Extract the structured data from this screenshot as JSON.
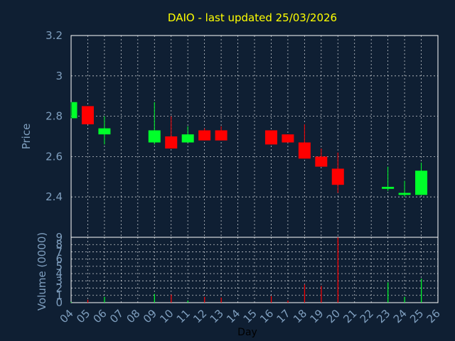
{
  "chart_data": {
    "type": "candlestick",
    "title": "DAIO - last updated 25/03/2026",
    "xlabel": "Day",
    "price_ylabel": "Price",
    "volume_ylabel": "Volume (0000)",
    "price_yticks": [
      "2.4",
      "2.6",
      "2.8",
      "3",
      "3.2"
    ],
    "price_ylim": [
      2.2,
      3.2
    ],
    "volume_yticks": [
      "0",
      "1",
      "2",
      "3",
      "4",
      "5",
      "6",
      "7",
      "8",
      "9"
    ],
    "volume_ylim": [
      0,
      9
    ],
    "x_tick_labels": [
      "04",
      "05",
      "06",
      "07",
      "08",
      "09",
      "10",
      "11",
      "12",
      "13",
      "14",
      "15",
      "16",
      "17",
      "18",
      "19",
      "20",
      "21",
      "22",
      "23",
      "24",
      "25",
      "26"
    ],
    "candles": [
      {
        "day": "04",
        "open": 2.79,
        "close": 2.87,
        "high": 2.87,
        "low": 2.79
      },
      {
        "day": "05",
        "open": 2.85,
        "close": 2.76,
        "high": 2.85,
        "low": 2.76
      },
      {
        "day": "06",
        "open": 2.71,
        "close": 2.74,
        "high": 2.8,
        "low": 2.66
      },
      {
        "day": "09",
        "open": 2.67,
        "close": 2.73,
        "high": 2.87,
        "low": 2.66
      },
      {
        "day": "10",
        "open": 2.7,
        "close": 2.64,
        "high": 2.8,
        "low": 2.64
      },
      {
        "day": "11",
        "open": 2.67,
        "close": 2.71,
        "high": 2.75,
        "low": 2.67
      },
      {
        "day": "12",
        "open": 2.73,
        "close": 2.68,
        "high": 2.74,
        "low": 2.68
      },
      {
        "day": "13",
        "open": 2.73,
        "close": 2.68,
        "high": 2.75,
        "low": 2.68
      },
      {
        "day": "16",
        "open": 2.73,
        "close": 2.66,
        "high": 2.73,
        "low": 2.66
      },
      {
        "day": "17",
        "open": 2.71,
        "close": 2.67,
        "high": 2.71,
        "low": 2.67
      },
      {
        "day": "18",
        "open": 2.67,
        "close": 2.59,
        "high": 2.76,
        "low": 2.59
      },
      {
        "day": "19",
        "open": 2.6,
        "close": 2.55,
        "high": 2.64,
        "low": 2.55
      },
      {
        "day": "20",
        "open": 2.54,
        "close": 2.46,
        "high": 2.62,
        "low": 2.42
      },
      {
        "day": "23",
        "open": 2.44,
        "close": 2.45,
        "high": 2.55,
        "low": 2.43
      },
      {
        "day": "24",
        "open": 2.41,
        "close": 2.42,
        "high": 2.48,
        "low": 2.4
      },
      {
        "day": "25",
        "open": 2.41,
        "close": 2.53,
        "high": 2.57,
        "low": 2.41
      }
    ],
    "volumes": [
      {
        "day": "04",
        "value": 0.1,
        "dir": "up"
      },
      {
        "day": "05",
        "value": 0.4,
        "dir": "down"
      },
      {
        "day": "06",
        "value": 0.8,
        "dir": "up"
      },
      {
        "day": "09",
        "value": 1.2,
        "dir": "up"
      },
      {
        "day": "10",
        "value": 1.1,
        "dir": "down"
      },
      {
        "day": "11",
        "value": 0.3,
        "dir": "up"
      },
      {
        "day": "12",
        "value": 0.8,
        "dir": "down"
      },
      {
        "day": "13",
        "value": 0.7,
        "dir": "down"
      },
      {
        "day": "16",
        "value": 0.9,
        "dir": "down"
      },
      {
        "day": "17",
        "value": 0.3,
        "dir": "down"
      },
      {
        "day": "18",
        "value": 2.5,
        "dir": "down"
      },
      {
        "day": "19",
        "value": 2.3,
        "dir": "down"
      },
      {
        "day": "20",
        "value": 9.0,
        "dir": "down"
      },
      {
        "day": "23",
        "value": 2.8,
        "dir": "up"
      },
      {
        "day": "24",
        "value": 0.8,
        "dir": "up"
      },
      {
        "day": "25",
        "value": 3.3,
        "dir": "up"
      }
    ],
    "up_color": "#00ff2a",
    "down_color": "#ff0000",
    "grid": true
  }
}
